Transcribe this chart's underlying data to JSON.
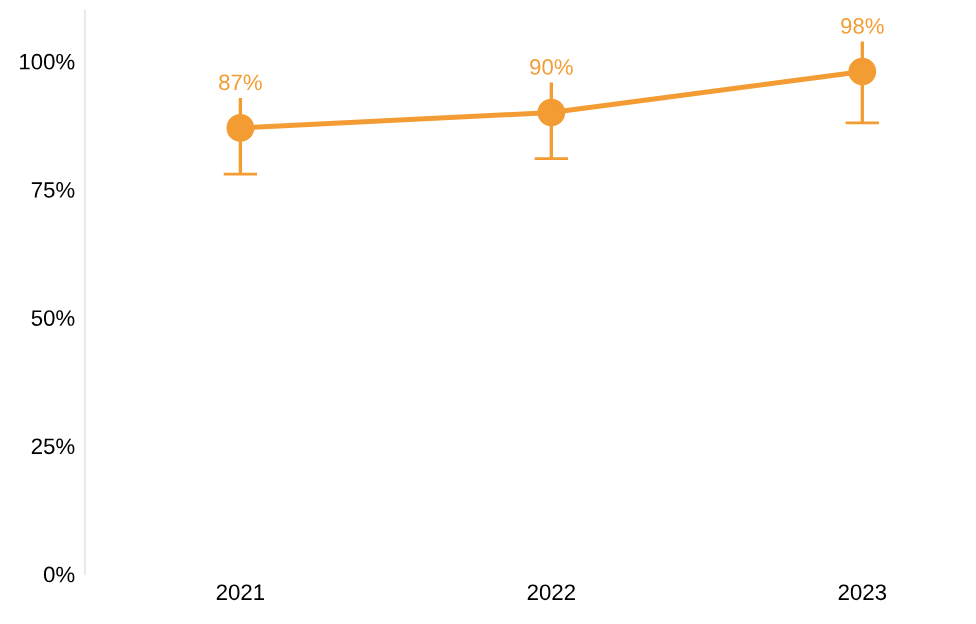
{
  "chart_data": {
    "type": "line",
    "categories": [
      "2021",
      "2022",
      "2023"
    ],
    "series": [
      {
        "color": "#f39c33",
        "values": [
          87,
          90,
          98
        ],
        "errors": [
          9,
          9,
          10
        ],
        "value_labels": [
          "87%",
          "90%",
          "98%"
        ]
      }
    ],
    "ylim": [
      0,
      110
    ],
    "yticks": [
      {
        "value": 0,
        "label": "0%"
      },
      {
        "value": 25,
        "label": "25%"
      },
      {
        "value": 50,
        "label": "50%"
      },
      {
        "value": 75,
        "label": "75%"
      },
      {
        "value": 100,
        "label": "100%"
      }
    ],
    "marker": "circle",
    "line_style": "solid",
    "grid": false
  }
}
